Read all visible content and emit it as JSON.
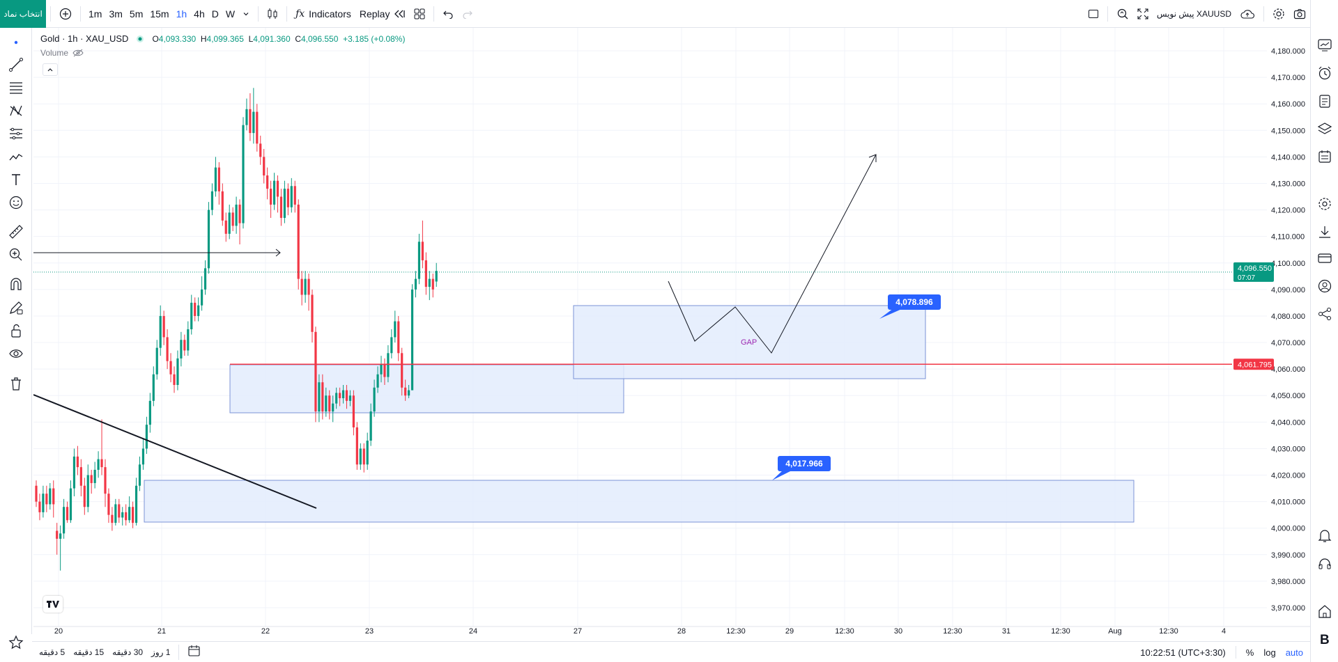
{
  "toolbar": {
    "symbol_button": "انتخاب نماد",
    "intervals": [
      "1m",
      "3m",
      "5m",
      "15m",
      "1h",
      "4h",
      "D",
      "W"
    ],
    "active_interval": "1h",
    "indicators_label": "Indicators",
    "replay_label": "Replay",
    "publish_label": "پیش نویس XAUUSD"
  },
  "legend": {
    "symbol": "Gold · 1h · XAU_USD",
    "open_label": "O",
    "open": "4,093.330",
    "high_label": "H",
    "high": "4,099.365",
    "low_label": "L",
    "low": "4,091.360",
    "close_label": "C",
    "close": "4,096.550",
    "change": "+3.185 (+0.08%)",
    "volume_label": "Volume"
  },
  "price_axis": {
    "ticks": [
      "4,180.000",
      "4,170.000",
      "4,160.000",
      "4,150.000",
      "4,140.000",
      "4,130.000",
      "4,120.000",
      "4,110.000",
      "4,100.000",
      "4,090.000",
      "4,080.000",
      "4,070.000",
      "4,060.000",
      "4,050.000",
      "4,040.000",
      "4,030.000",
      "4,020.000",
      "4,010.000",
      "4,000.000",
      "3,990.000",
      "3,980.000",
      "3,970.000"
    ],
    "current_price": "4,096.550",
    "countdown": "07:07",
    "line_price": "4,061.795"
  },
  "time_axis": {
    "ticks": [
      "20",
      "21",
      "22",
      "23",
      "24",
      "27",
      "28",
      "12:30",
      "29",
      "12:30",
      "30",
      "12:30",
      "31",
      "12:30",
      "Aug",
      "12:30",
      "4"
    ]
  },
  "annotations": {
    "label_upper": "4,078.896",
    "label_lower": "4,017.966",
    "gap_text": "GAP"
  },
  "bottom": {
    "ranges": [
      "5 دقیقه",
      "15 دقیقه",
      "30 دقیقه",
      "1 روز"
    ],
    "clock": "10:22:51 (UTC+3:30)",
    "percent": "%",
    "log": "log",
    "auto": "auto"
  },
  "colors": {
    "up": "#089981",
    "down": "#f23645",
    "accent": "#2962ff",
    "zone_fill": "#e3ecfd",
    "zone_stroke": "#7b93d6",
    "red_line": "#f23645"
  },
  "chart_data": {
    "type": "candlestick",
    "title": "Gold · 1h · XAU_USD",
    "ylim": [
      3965,
      4185
    ],
    "candles": [
      [
        4016,
        4010,
        4018,
        4008
      ],
      [
        4010,
        4006,
        4013,
        4003
      ],
      [
        4006,
        4013,
        4016,
        4004
      ],
      [
        4013,
        4009,
        4016,
        4006
      ],
      [
        4009,
        4015,
        4017,
        4007
      ],
      [
        4015,
        4009,
        4018,
        4004
      ],
      [
        3999,
        3996,
        4002,
        3990
      ],
      [
        3996,
        3998,
        4001,
        3984
      ],
      [
        3998,
        4008,
        4011,
        3996
      ],
      [
        4008,
        4003,
        4010,
        4002
      ],
      [
        4003,
        4015,
        4018,
        4002
      ],
      [
        4015,
        4027,
        4030,
        4012
      ],
      [
        4027,
        4023,
        4031,
        4020
      ],
      [
        4023,
        4016,
        4026,
        4012
      ],
      [
        4016,
        4008,
        4019,
        4005
      ],
      [
        4008,
        4020,
        4024,
        4006
      ],
      [
        4020,
        4017,
        4022,
        4013
      ],
      [
        4017,
        4022,
        4025,
        4015
      ],
      [
        4022,
        4026,
        4029,
        4019
      ],
      [
        4026,
        4023,
        4041,
        4020
      ],
      [
        4023,
        4013,
        4026,
        4008
      ],
      [
        4013,
        4005,
        4015,
        4002
      ],
      [
        4005,
        4002,
        4008,
        3999
      ],
      [
        4002,
        4009,
        4011,
        4001
      ],
      [
        4009,
        4004,
        4011,
        4002
      ],
      [
        4004,
        4006,
        4008,
        4001
      ],
      [
        4006,
        4003,
        4009,
        4001
      ],
      [
        4003,
        4008,
        4012,
        4002
      ],
      [
        4008,
        4002,
        4010,
        4000
      ],
      [
        4002,
        4016,
        4019,
        4001
      ],
      [
        4016,
        4024,
        4027,
        4014
      ],
      [
        4024,
        4030,
        4034,
        4022
      ],
      [
        4030,
        4039,
        4042,
        4028
      ],
      [
        4039,
        4048,
        4051,
        4036
      ],
      [
        4048,
        4058,
        4061,
        4046
      ],
      [
        4058,
        4068,
        4071,
        4056
      ],
      [
        4068,
        4080,
        4084,
        4065
      ],
      [
        4080,
        4072,
        4082,
        4069
      ],
      [
        4072,
        4063,
        4075,
        4060
      ],
      [
        4063,
        4058,
        4066,
        4055
      ],
      [
        4058,
        4054,
        4061,
        4051
      ],
      [
        4054,
        4064,
        4067,
        4052
      ],
      [
        4064,
        4071,
        4074,
        4061
      ],
      [
        4071,
        4067,
        4073,
        4065
      ],
      [
        4067,
        4075,
        4078,
        4065
      ],
      [
        4075,
        4085,
        4088,
        4073
      ],
      [
        4085,
        4080,
        4087,
        4078
      ],
      [
        4080,
        4084,
        4087,
        4078
      ],
      [
        4084,
        4090,
        4095,
        4082
      ],
      [
        4090,
        4098,
        4101,
        4088
      ],
      [
        4098,
        4120,
        4123,
        4096
      ],
      [
        4120,
        4127,
        4130,
        4118
      ],
      [
        4127,
        4136,
        4140,
        4125
      ],
      [
        4136,
        4127,
        4138,
        4122
      ],
      [
        4127,
        4116,
        4130,
        4114
      ],
      [
        4116,
        4111,
        4119,
        4108
      ],
      [
        4111,
        4119,
        4122,
        4109
      ],
      [
        4119,
        4114,
        4121,
        4112
      ],
      [
        4114,
        4122,
        4125,
        4111
      ],
      [
        4122,
        4115,
        4124,
        4107
      ],
      [
        4115,
        4152,
        4155,
        4113
      ],
      [
        4152,
        4158,
        4162,
        4150
      ],
      [
        4158,
        4149,
        4164,
        4146
      ],
      [
        4149,
        4157,
        4166,
        4145
      ],
      [
        4157,
        4145,
        4160,
        4142
      ],
      [
        4145,
        4140,
        4148,
        4137
      ],
      [
        4140,
        4133,
        4143,
        4130
      ],
      [
        4133,
        4128,
        4136,
        4124
      ],
      [
        4128,
        4122,
        4131,
        4117
      ],
      [
        4122,
        4131,
        4134,
        4120
      ],
      [
        4131,
        4125,
        4133,
        4119
      ],
      [
        4125,
        4117,
        4128,
        4114
      ],
      [
        4117,
        4128,
        4131,
        4115
      ],
      [
        4128,
        4121,
        4130,
        4118
      ],
      [
        4121,
        4129,
        4132,
        4119
      ],
      [
        4129,
        4122,
        4131,
        4119
      ],
      [
        4122,
        4094,
        4124,
        4090
      ],
      [
        4094,
        4088,
        4097,
        4084
      ],
      [
        4088,
        4094,
        4097,
        4085
      ],
      [
        4094,
        4088,
        4096,
        4082
      ],
      [
        4088,
        4074,
        4090,
        4070
      ],
      [
        4074,
        4044,
        4076,
        4040
      ],
      [
        4044,
        4055,
        4058,
        4040
      ],
      [
        4055,
        4044,
        4058,
        4041
      ],
      [
        4044,
        4050,
        4053,
        4042
      ],
      [
        4050,
        4044,
        4052,
        4041
      ],
      [
        4044,
        4047,
        4050,
        4040
      ],
      [
        4047,
        4051,
        4053,
        4045
      ],
      [
        4051,
        4049,
        4053,
        4046
      ],
      [
        4049,
        4052,
        4054,
        4047
      ],
      [
        4052,
        4048,
        4054,
        4045
      ],
      [
        4048,
        4050,
        4052,
        4046
      ],
      [
        4050,
        4038,
        4052,
        4035
      ],
      [
        4038,
        4024,
        4040,
        4022
      ],
      [
        4024,
        4030,
        4032,
        4022
      ],
      [
        4030,
        4024,
        4032,
        4021
      ],
      [
        4024,
        4033,
        4036,
        4022
      ],
      [
        4033,
        4044,
        4047,
        4031
      ],
      [
        4044,
        4053,
        4056,
        4042
      ],
      [
        4053,
        4058,
        4061,
        4051
      ],
      [
        4058,
        4062,
        4065,
        4055
      ],
      [
        4062,
        4057,
        4064,
        4054
      ],
      [
        4057,
        4066,
        4069,
        4055
      ],
      [
        4066,
        4072,
        4075,
        4064
      ],
      [
        4072,
        4078,
        4082,
        4070
      ],
      [
        4078,
        4066,
        4080,
        4063
      ],
      [
        4066,
        4053,
        4068,
        4050
      ],
      [
        4053,
        4050,
        4056,
        4048
      ],
      [
        4050,
        4052,
        4054,
        4049
      ],
      [
        4052,
        4090,
        4092,
        4086
      ],
      [
        4090,
        4094,
        4097,
        4087
      ],
      [
        4094,
        4108,
        4111,
        4092
      ],
      [
        4108,
        4101,
        4116,
        4098
      ],
      [
        4101,
        4091,
        4104,
        4088
      ],
      [
        4091,
        4094,
        4097,
        4086
      ],
      [
        4094,
        4090,
        4096,
        4087
      ],
      [
        4093,
        4097,
        4100,
        4091
      ]
    ]
  }
}
